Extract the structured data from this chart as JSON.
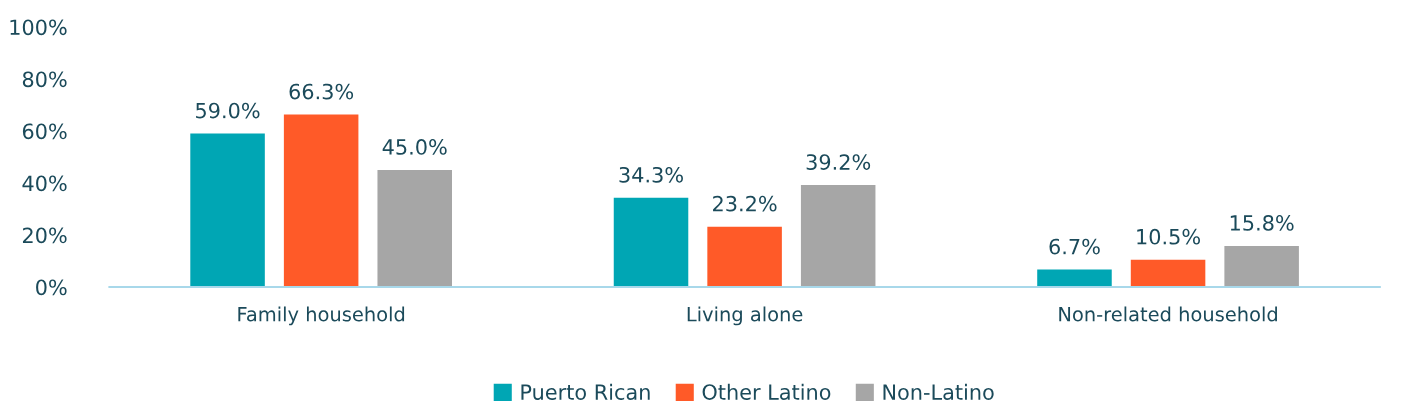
{
  "chart_data": {
    "type": "bar",
    "categories": [
      "Family household",
      "Living alone",
      "Non-related household"
    ],
    "series": [
      {
        "name": "Puerto Rican",
        "color": "#00a6b4",
        "values": [
          59.0,
          34.3,
          6.7
        ],
        "value_labels": [
          "59.0%",
          "34.3%",
          "6.7%"
        ]
      },
      {
        "name": "Other Latino",
        "color": "#ff5a28",
        "values": [
          66.3,
          23.2,
          10.5
        ],
        "value_labels": [
          "66.3%",
          "23.2%",
          "10.5%"
        ]
      },
      {
        "name": "Non-Latino",
        "color": "#a6a6a6",
        "values": [
          45.0,
          39.2,
          15.8
        ],
        "value_labels": [
          "45.0%",
          "39.2%",
          "15.8%"
        ]
      }
    ],
    "ylim": [
      0,
      100
    ],
    "yticks": [
      {
        "value": 0,
        "label": "0%"
      },
      {
        "value": 20,
        "label": "20%"
      },
      {
        "value": 40,
        "label": "40%"
      },
      {
        "value": 60,
        "label": "60%"
      },
      {
        "value": 80,
        "label": "80%"
      },
      {
        "value": 100,
        "label": "100%"
      }
    ],
    "grid": false,
    "legend": "bottom"
  }
}
